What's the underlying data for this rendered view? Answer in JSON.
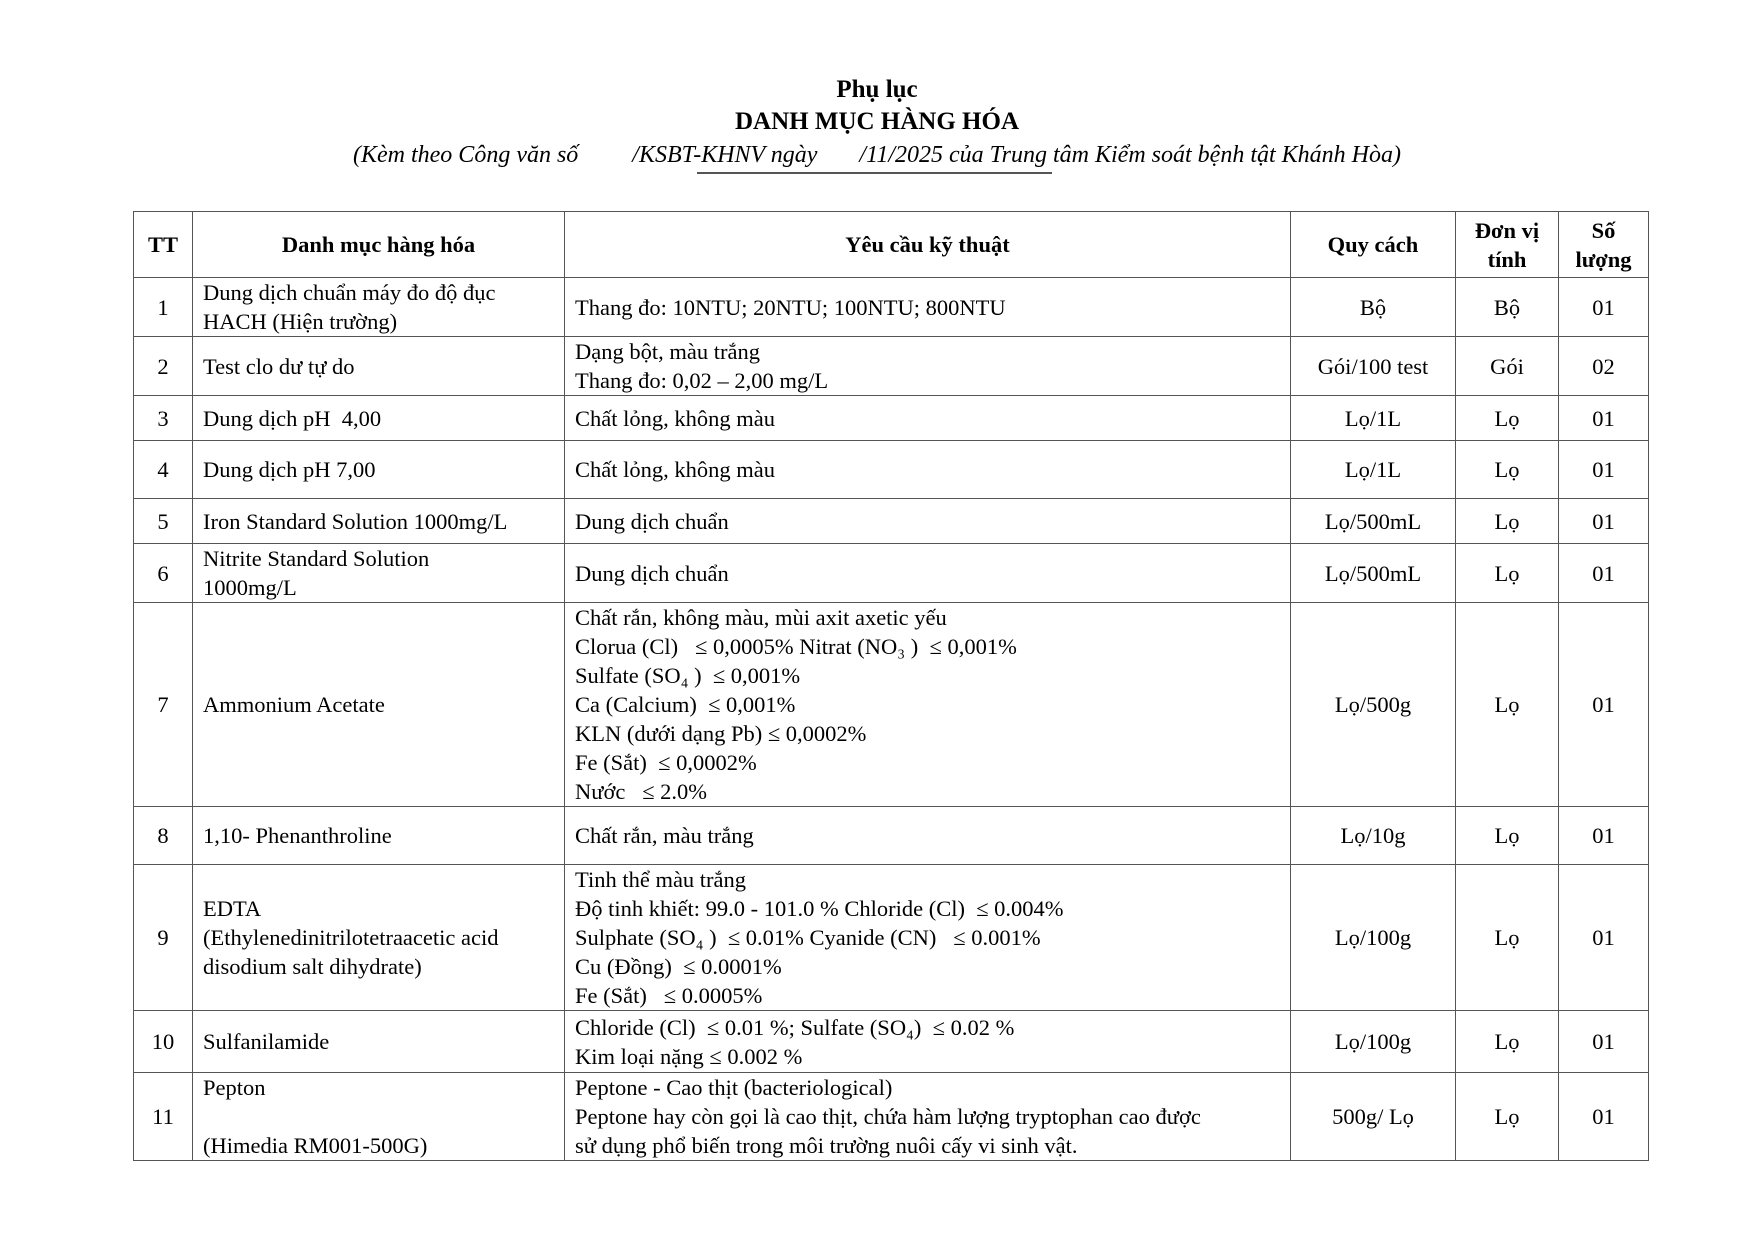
{
  "header": {
    "title": "Phụ lục",
    "subtitle": "DANH MỤC HÀNG HÓA",
    "reference": "(Kèm theo Công văn số         /KSBT-KHNV ngày       /11/2025 của Trung tâm Kiểm soát bệnh tật Khánh Hòa)"
  },
  "table": {
    "columns": [
      "TT",
      "Danh mục hàng hóa",
      "Yêu cầu kỹ thuật",
      "Quy cách",
      "Đơn vị tính",
      "Số lượng"
    ],
    "rows": [
      {
        "tt": "1",
        "name": [
          "Dung dịch chuẩn máy đo độ đục",
          "HACH (Hiện trường)"
        ],
        "spec": [
          "Thang đo: 10NTU; 20NTU; 100NTU; 800NTU"
        ],
        "pack": "Bộ",
        "unit": "Bộ",
        "qty": "01"
      },
      {
        "tt": "2",
        "name": [
          "Test clo dư tự do"
        ],
        "spec": [
          "Dạng bột, màu trắng",
          "Thang đo: 0,02 – 2,00 mg/L"
        ],
        "pack": "Gói/100 test",
        "unit": "Gói",
        "qty": "02"
      },
      {
        "tt": "3",
        "name": [
          "Dung dịch pH  4,00"
        ],
        "spec": [
          "Chất lỏng, không màu"
        ],
        "pack": "Lọ/1L",
        "unit": "Lọ",
        "qty": "01"
      },
      {
        "tt": "4",
        "name": [
          "Dung dịch pH 7,00"
        ],
        "spec": [
          "Chất lỏng, không màu"
        ],
        "pack": "Lọ/1L",
        "unit": "Lọ",
        "qty": "01"
      },
      {
        "tt": "5",
        "name": [
          "Iron Standard Solution 1000mg/L"
        ],
        "spec": [
          "Dung dịch chuẩn"
        ],
        "pack": "Lọ/500mL",
        "unit": "Lọ",
        "qty": "01"
      },
      {
        "tt": "6",
        "name": [
          "Nitrite Standard Solution",
          "1000mg/L"
        ],
        "spec": [
          "Dung dịch chuẩn"
        ],
        "pack": "Lọ/500mL",
        "unit": "Lọ",
        "qty": "01"
      },
      {
        "tt": "7",
        "name": [
          "Ammonium Acetate"
        ],
        "spec": [
          "Chất rắn, không màu, mùi axit axetic yếu",
          "Clorua (Cl)   ≤ 0,0005% Nitrat (NO₃ )  ≤ 0,001%",
          "Sulfate (SO₄ )  ≤ 0,001%",
          "Ca (Calcium)  ≤ 0,001%",
          "KLN (dưới dạng Pb) ≤ 0,0002%",
          "Fe (Sắt)  ≤ 0,0002%",
          "Nước   ≤ 2.0%"
        ],
        "pack": "Lọ/500g",
        "unit": "Lọ",
        "qty": "01"
      },
      {
        "tt": "8",
        "name": [
          "1,10- Phenanthroline"
        ],
        "spec": [
          "Chất rắn, màu trắng"
        ],
        "pack": "Lọ/10g",
        "unit": "Lọ",
        "qty": "01"
      },
      {
        "tt": "9",
        "name": [
          "EDTA",
          "(Ethylenedinitrilotetraacetic acid",
          "disodium salt dihydrate)"
        ],
        "spec": [
          "Tinh thể màu trắng",
          "Độ tinh khiết: 99.0 - 101.0 % Chloride (Cl)  ≤ 0.004%",
          "Sulphate (SO₄ )  ≤ 0.01% Cyanide (CN)   ≤ 0.001%",
          "Cu (Đồng)  ≤ 0.0001%",
          "Fe (Sắt)   ≤ 0.0005%"
        ],
        "pack": "Lọ/100g",
        "unit": "Lọ",
        "qty": "01"
      },
      {
        "tt": "10",
        "name": [
          "Sulfanilamide"
        ],
        "spec": [
          "Chloride (Cl)  ≤ 0.01 %; Sulfate (SO₄)  ≤ 0.02 %",
          "Kim loại nặng ≤ 0.002 %"
        ],
        "pack": "Lọ/100g",
        "unit": "Lọ",
        "qty": "01"
      },
      {
        "tt": "11",
        "name": [
          "Pepton",
          " ",
          "(Himedia RM001-500G)"
        ],
        "spec": [
          "Peptone - Cao thịt (bacteriological)",
          "Peptone hay còn gọi là cao thịt, chứa hàm lượng tryptophan cao được",
          "sử dụng phổ biến trong môi trường nuôi cấy vi sinh vật."
        ],
        "pack": "500g/ Lọ",
        "unit": "Lọ",
        "qty": "01"
      }
    ]
  }
}
